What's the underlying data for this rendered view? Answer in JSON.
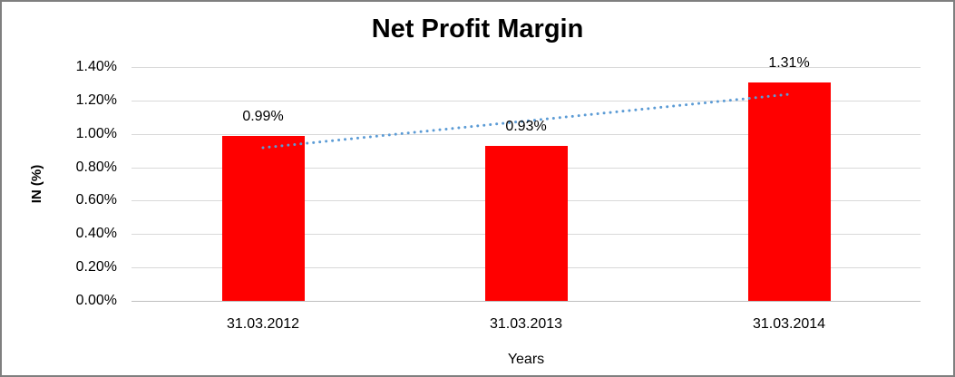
{
  "window": {
    "background_color": "#FFFFFF",
    "border_color": "#7F7F7F"
  },
  "chart_data": {
    "type": "bar",
    "title": "Net Profit Margin",
    "xlabel": "Years",
    "ylabel": "IN (%)",
    "categories": [
      "31.03.2012",
      "31.03.2013",
      "31.03.2014"
    ],
    "values": [
      0.99,
      0.93,
      1.31
    ],
    "data_labels": [
      "0.99%",
      "0.93%",
      "1.31%"
    ],
    "ylim": [
      0,
      1.4
    ],
    "ytick_step": 0.2,
    "ytick_labels": [
      "0.00%",
      "0.20%",
      "0.40%",
      "0.60%",
      "0.80%",
      "1.00%",
      "1.20%",
      "1.40%"
    ],
    "grid": true,
    "legend": "none",
    "bar_color": "#FF0000",
    "gridline_color": "#D9D9D9",
    "axisline_color": "#BFBFBF",
    "trendline": {
      "type": "linear",
      "style": "dotted",
      "color": "#5B9BD5",
      "start_value": 0.917,
      "end_value": 1.237
    }
  }
}
